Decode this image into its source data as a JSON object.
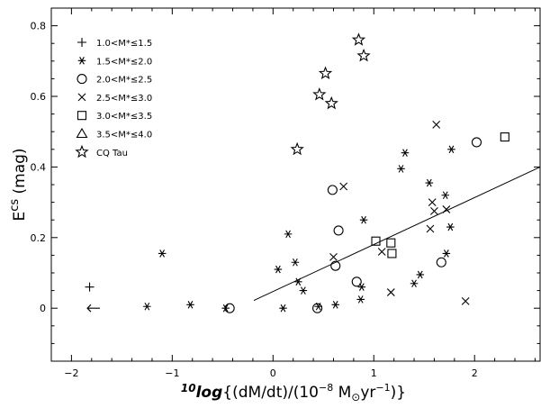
{
  "chart_data": {
    "type": "scatter",
    "xlabel": {
      "prefix": "10",
      "log": "log",
      "main": "{(dM/dt)/(10",
      "exp": "−8",
      "unit": " M",
      "sun": "⊙",
      "unit2": "yr",
      "exp2": "−1",
      "tail": ")}"
    },
    "ylabel": {
      "main": "E",
      "sup": "cs",
      "tail": " (mag)"
    },
    "xlim": [
      -2.2,
      2.65
    ],
    "ylim": [
      -0.15,
      0.85
    ],
    "x_ticks": [
      -2,
      -1,
      0,
      1,
      2
    ],
    "y_ticks": [
      0,
      0.2,
      0.4,
      0.6,
      0.8
    ],
    "x_tick_labels": [
      "−2",
      "−1",
      "0",
      "1",
      "2"
    ],
    "y_tick_labels": [
      "0",
      "0.2",
      "0.4",
      "0.6",
      "0.8"
    ],
    "grid": false,
    "legend_position": "top-left",
    "legend": [
      {
        "marker": "plus",
        "label": "1.0<M*≤1.5"
      },
      {
        "marker": "asterisk",
        "label": "1.5<M*≤2.0"
      },
      {
        "marker": "circle",
        "label": "2.0<M*≤2.5"
      },
      {
        "marker": "cross",
        "label": "2.5<M*≤3.0"
      },
      {
        "marker": "square",
        "label": "3.0<M*≤3.5"
      },
      {
        "marker": "triangle",
        "label": "3.5<M*≤4.0"
      },
      {
        "marker": "star",
        "label": "CQ Tau"
      }
    ],
    "series": [
      {
        "marker": "plus",
        "points": [
          [
            -1.82,
            0.06
          ]
        ]
      },
      {
        "marker": "asterisk",
        "points": [
          [
            -1.25,
            0.005
          ],
          [
            -1.1,
            0.155
          ],
          [
            -0.82,
            0.01
          ],
          [
            -0.47,
            0.0
          ],
          [
            0.05,
            0.11
          ],
          [
            0.1,
            0.0
          ],
          [
            0.15,
            0.21
          ],
          [
            0.22,
            0.13
          ],
          [
            0.25,
            0.075
          ],
          [
            0.3,
            0.05
          ],
          [
            0.45,
            0.005
          ],
          [
            0.62,
            0.01
          ],
          [
            0.87,
            0.025
          ],
          [
            0.88,
            0.06
          ],
          [
            0.9,
            0.25
          ],
          [
            1.27,
            0.395
          ],
          [
            1.31,
            0.44
          ],
          [
            1.4,
            0.07
          ],
          [
            1.46,
            0.095
          ],
          [
            1.55,
            0.355
          ],
          [
            1.71,
            0.32
          ],
          [
            1.72,
            0.155
          ],
          [
            1.76,
            0.23
          ],
          [
            1.77,
            0.45
          ]
        ]
      },
      {
        "marker": "circle",
        "points": [
          [
            -0.43,
            0.0
          ],
          [
            0.44,
            0.0
          ],
          [
            0.59,
            0.335
          ],
          [
            0.62,
            0.12
          ],
          [
            0.65,
            0.22
          ],
          [
            0.83,
            0.075
          ],
          [
            1.67,
            0.13
          ],
          [
            2.02,
            0.47
          ]
        ]
      },
      {
        "marker": "cross",
        "points": [
          [
            0.6,
            0.145
          ],
          [
            0.7,
            0.345
          ],
          [
            1.08,
            0.16
          ],
          [
            1.17,
            0.045
          ],
          [
            1.56,
            0.225
          ],
          [
            1.58,
            0.3
          ],
          [
            1.6,
            0.275
          ],
          [
            1.62,
            0.52
          ],
          [
            1.72,
            0.28
          ],
          [
            1.91,
            0.02
          ]
        ]
      },
      {
        "marker": "square",
        "points": [
          [
            1.02,
            0.19
          ],
          [
            1.17,
            0.185
          ],
          [
            1.18,
            0.155
          ],
          [
            2.3,
            0.485
          ]
        ]
      },
      {
        "marker": "star",
        "points": [
          [
            0.24,
            0.45
          ],
          [
            0.46,
            0.605
          ],
          [
            0.52,
            0.665
          ],
          [
            0.58,
            0.58
          ],
          [
            0.85,
            0.76
          ],
          [
            0.9,
            0.715
          ]
        ]
      }
    ],
    "arrow": {
      "x": -1.78,
      "y": 0.0,
      "direction": "left"
    },
    "fit_line": {
      "x": [
        -0.19,
        2.65
      ],
      "y": [
        0.022,
        0.4
      ]
    }
  }
}
